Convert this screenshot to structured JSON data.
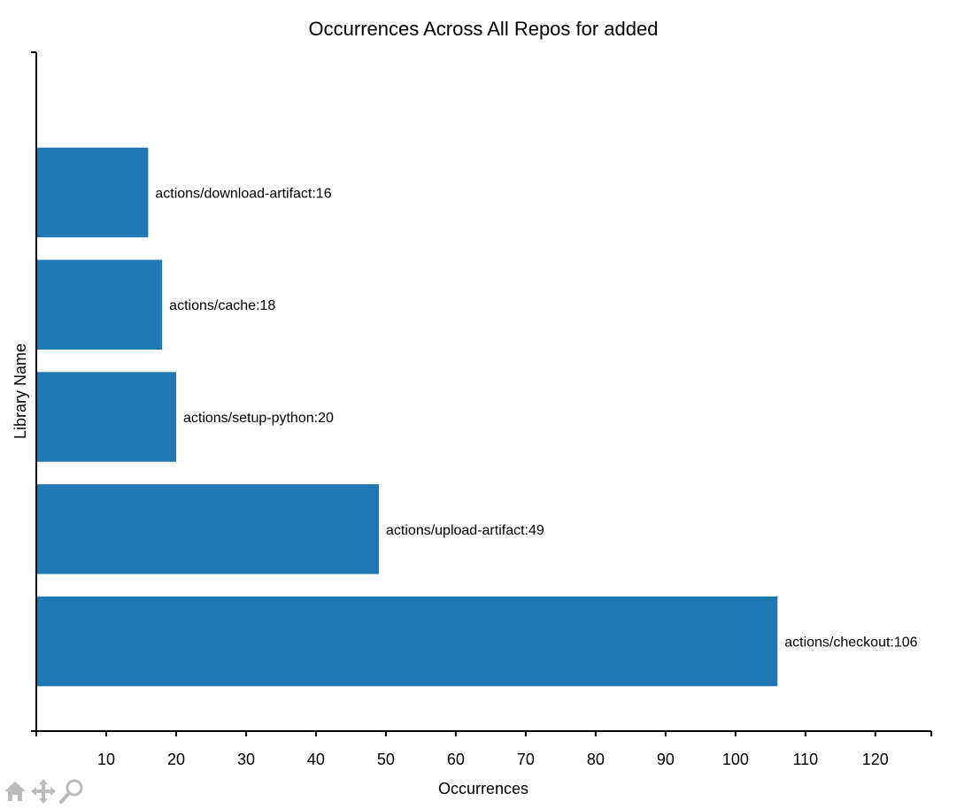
{
  "chart_data": {
    "type": "bar",
    "orientation": "horizontal",
    "title": "Occurrences Across All Repos for added",
    "xlabel": "Occurrences",
    "ylabel": "Library Name",
    "xlim": [
      0,
      128
    ],
    "ylim": [
      -0.8,
      5.25
    ],
    "x_ticks": [
      10,
      20,
      30,
      40,
      50,
      60,
      70,
      80,
      90,
      100,
      110,
      120
    ],
    "categories": [
      "actions/checkout",
      "actions/upload-artifact",
      "actions/setup-python",
      "actions/cache",
      "actions/download-artifact"
    ],
    "values": [
      106,
      49,
      20,
      18,
      16
    ],
    "data_labels": [
      "actions/checkout:106",
      "actions/upload-artifact:49",
      "actions/setup-python:20",
      "actions/cache:18",
      "actions/download-artifact:16"
    ],
    "bar_color": "#1f77b4",
    "grid": false,
    "legend": "none"
  },
  "toolbar": {
    "icons": [
      "home-icon",
      "pan-icon",
      "zoom-icon"
    ],
    "icon_color": "#bbbbbb"
  }
}
